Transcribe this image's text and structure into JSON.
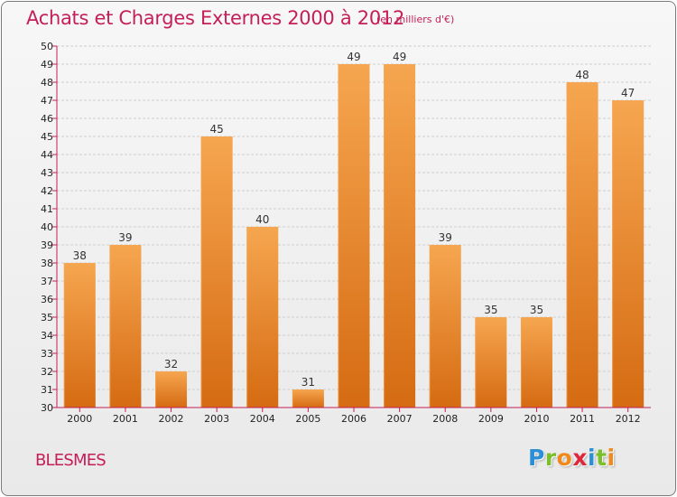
{
  "header": {
    "title": "Achats et Charges Externes 2000 à 2012",
    "subtitle": "(en milliers d'€)"
  },
  "commune": "BLESMES",
  "logo": {
    "letters": [
      "P",
      "r",
      "o",
      "x",
      "i",
      "t",
      "i"
    ],
    "colors": [
      "#2a8fd6",
      "#7bbf2a",
      "#f08a1c",
      "#e0263a",
      "#2a8fd6",
      "#7bbf2a",
      "#f08a1c"
    ]
  },
  "colors": {
    "bar_light": "#f6a650",
    "bar_dark": "#d56b12",
    "axis": "#c41f59",
    "grid": "#cfcfcf"
  },
  "chart_data": {
    "type": "bar",
    "title": "Achats et Charges Externes 2000 à 2012",
    "subtitle": "(en milliers d'€)",
    "categories": [
      "2000",
      "2001",
      "2002",
      "2003",
      "2004",
      "2005",
      "2006",
      "2007",
      "2008",
      "2009",
      "2010",
      "2011",
      "2012"
    ],
    "values": [
      38,
      39,
      32,
      45,
      40,
      31,
      49,
      49,
      39,
      35,
      35,
      48,
      47
    ],
    "ylim": [
      30,
      50
    ],
    "yticks": [
      "30",
      "31",
      "32",
      "33",
      "34",
      "35",
      "36",
      "37",
      "38",
      "39",
      "40",
      "41",
      "42",
      "43",
      "44",
      "45",
      "46",
      "47",
      "48",
      "49",
      "50"
    ],
    "xlabel": "",
    "ylabel": "",
    "grid": true,
    "data_labels": true
  }
}
